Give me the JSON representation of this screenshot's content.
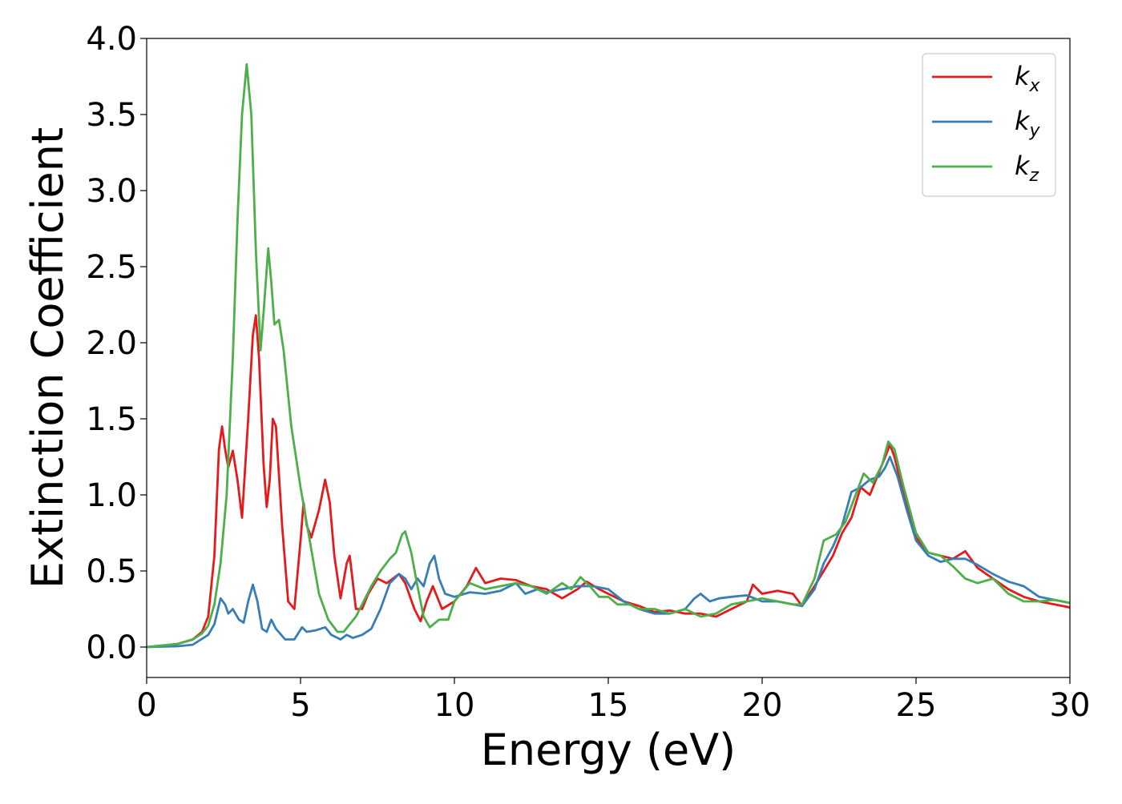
{
  "chart_data": {
    "type": "line",
    "xlabel": "Energy (eV)",
    "ylabel": "Extinction Coefficient",
    "xlim": [
      0,
      30
    ],
    "ylim": [
      -0.2,
      4.0
    ],
    "xticks": [
      0,
      5,
      10,
      15,
      20,
      25,
      30
    ],
    "xtick_labels": [
      "0",
      "5",
      "10",
      "15",
      "20",
      "25",
      "30"
    ],
    "yticks": [
      0.0,
      0.5,
      1.0,
      1.5,
      2.0,
      2.5,
      3.0,
      3.5,
      4.0
    ],
    "ytick_labels": [
      "0.0",
      "0.5",
      "1.0",
      "1.5",
      "2.0",
      "2.5",
      "3.0",
      "3.5",
      "4.0"
    ],
    "grid": false,
    "legend_position": "top-right",
    "series": [
      {
        "name": "k",
        "subscript": "x",
        "color": "#e41a1c",
        "points": [
          [
            0,
            0
          ],
          [
            1,
            0.02
          ],
          [
            1.5,
            0.05
          ],
          [
            1.8,
            0.1
          ],
          [
            2.0,
            0.2
          ],
          [
            2.2,
            0.6
          ],
          [
            2.35,
            1.3
          ],
          [
            2.45,
            1.45
          ],
          [
            2.55,
            1.3
          ],
          [
            2.65,
            1.18
          ],
          [
            2.8,
            1.29
          ],
          [
            2.95,
            1.1
          ],
          [
            3.1,
            0.85
          ],
          [
            3.3,
            1.5
          ],
          [
            3.45,
            2.05
          ],
          [
            3.55,
            2.18
          ],
          [
            3.65,
            1.9
          ],
          [
            3.8,
            1.2
          ],
          [
            3.9,
            0.92
          ],
          [
            4.0,
            1.1
          ],
          [
            4.1,
            1.5
          ],
          [
            4.2,
            1.45
          ],
          [
            4.4,
            0.8
          ],
          [
            4.6,
            0.3
          ],
          [
            4.8,
            0.25
          ],
          [
            5.0,
            0.7
          ],
          [
            5.1,
            0.95
          ],
          [
            5.2,
            0.8
          ],
          [
            5.35,
            0.72
          ],
          [
            5.6,
            0.9
          ],
          [
            5.8,
            1.1
          ],
          [
            5.95,
            0.95
          ],
          [
            6.1,
            0.6
          ],
          [
            6.3,
            0.32
          ],
          [
            6.5,
            0.55
          ],
          [
            6.6,
            0.6
          ],
          [
            6.8,
            0.25
          ],
          [
            7.0,
            0.25
          ],
          [
            7.2,
            0.35
          ],
          [
            7.5,
            0.45
          ],
          [
            7.8,
            0.42
          ],
          [
            8.2,
            0.48
          ],
          [
            8.4,
            0.42
          ],
          [
            8.7,
            0.25
          ],
          [
            8.9,
            0.17
          ],
          [
            9.1,
            0.3
          ],
          [
            9.3,
            0.4
          ],
          [
            9.6,
            0.25
          ],
          [
            10.0,
            0.3
          ],
          [
            10.4,
            0.4
          ],
          [
            10.7,
            0.52
          ],
          [
            11.0,
            0.42
          ],
          [
            11.5,
            0.45
          ],
          [
            12.0,
            0.44
          ],
          [
            12.5,
            0.4
          ],
          [
            13.0,
            0.38
          ],
          [
            13.5,
            0.32
          ],
          [
            14.0,
            0.38
          ],
          [
            14.3,
            0.43
          ],
          [
            14.7,
            0.38
          ],
          [
            15.0,
            0.35
          ],
          [
            15.5,
            0.3
          ],
          [
            16.0,
            0.27
          ],
          [
            16.5,
            0.23
          ],
          [
            17.0,
            0.24
          ],
          [
            17.5,
            0.22
          ],
          [
            18.0,
            0.22
          ],
          [
            18.5,
            0.2
          ],
          [
            19.0,
            0.25
          ],
          [
            19.5,
            0.3
          ],
          [
            19.7,
            0.41
          ],
          [
            20.0,
            0.35
          ],
          [
            20.5,
            0.37
          ],
          [
            21.0,
            0.35
          ],
          [
            21.3,
            0.27
          ],
          [
            21.7,
            0.4
          ],
          [
            22.0,
            0.5
          ],
          [
            22.3,
            0.6
          ],
          [
            22.6,
            0.75
          ],
          [
            22.9,
            0.85
          ],
          [
            23.2,
            1.05
          ],
          [
            23.5,
            1.0
          ],
          [
            23.8,
            1.15
          ],
          [
            24.0,
            1.25
          ],
          [
            24.15,
            1.33
          ],
          [
            24.3,
            1.25
          ],
          [
            24.6,
            1.0
          ],
          [
            25.0,
            0.72
          ],
          [
            25.4,
            0.62
          ],
          [
            25.8,
            0.6
          ],
          [
            26.2,
            0.58
          ],
          [
            26.6,
            0.63
          ],
          [
            27.0,
            0.52
          ],
          [
            27.5,
            0.45
          ],
          [
            28.0,
            0.38
          ],
          [
            28.5,
            0.33
          ],
          [
            29.0,
            0.3
          ],
          [
            29.5,
            0.28
          ],
          [
            30.0,
            0.26
          ]
        ]
      },
      {
        "name": "k",
        "subscript": "y",
        "color": "#377eb8",
        "points": [
          [
            0,
            0
          ],
          [
            1,
            0.005
          ],
          [
            1.5,
            0.015
          ],
          [
            2.0,
            0.08
          ],
          [
            2.2,
            0.15
          ],
          [
            2.4,
            0.32
          ],
          [
            2.55,
            0.28
          ],
          [
            2.65,
            0.22
          ],
          [
            2.8,
            0.25
          ],
          [
            3.0,
            0.18
          ],
          [
            3.15,
            0.16
          ],
          [
            3.3,
            0.3
          ],
          [
            3.45,
            0.41
          ],
          [
            3.6,
            0.3
          ],
          [
            3.75,
            0.12
          ],
          [
            3.9,
            0.1
          ],
          [
            4.05,
            0.18
          ],
          [
            4.2,
            0.12
          ],
          [
            4.5,
            0.05
          ],
          [
            4.8,
            0.05
          ],
          [
            5.05,
            0.13
          ],
          [
            5.2,
            0.1
          ],
          [
            5.5,
            0.11
          ],
          [
            5.8,
            0.13
          ],
          [
            6.0,
            0.08
          ],
          [
            6.3,
            0.05
          ],
          [
            6.5,
            0.08
          ],
          [
            6.7,
            0.06
          ],
          [
            7.0,
            0.08
          ],
          [
            7.3,
            0.12
          ],
          [
            7.6,
            0.25
          ],
          [
            7.9,
            0.42
          ],
          [
            8.2,
            0.48
          ],
          [
            8.4,
            0.45
          ],
          [
            8.6,
            0.38
          ],
          [
            8.8,
            0.45
          ],
          [
            9.0,
            0.4
          ],
          [
            9.2,
            0.55
          ],
          [
            9.35,
            0.6
          ],
          [
            9.5,
            0.45
          ],
          [
            9.7,
            0.35
          ],
          [
            10.0,
            0.33
          ],
          [
            10.5,
            0.36
          ],
          [
            11.0,
            0.35
          ],
          [
            11.5,
            0.37
          ],
          [
            12.0,
            0.42
          ],
          [
            12.3,
            0.35
          ],
          [
            12.7,
            0.38
          ],
          [
            13.0,
            0.36
          ],
          [
            13.5,
            0.38
          ],
          [
            14.0,
            0.4
          ],
          [
            14.5,
            0.4
          ],
          [
            15.0,
            0.38
          ],
          [
            15.5,
            0.3
          ],
          [
            16.0,
            0.25
          ],
          [
            16.5,
            0.22
          ],
          [
            17.0,
            0.22
          ],
          [
            17.5,
            0.25
          ],
          [
            17.8,
            0.32
          ],
          [
            18.0,
            0.35
          ],
          [
            18.3,
            0.3
          ],
          [
            18.6,
            0.32
          ],
          [
            19.0,
            0.33
          ],
          [
            19.5,
            0.34
          ],
          [
            20.0,
            0.3
          ],
          [
            20.5,
            0.3
          ],
          [
            21.0,
            0.28
          ],
          [
            21.3,
            0.27
          ],
          [
            21.7,
            0.38
          ],
          [
            22.0,
            0.55
          ],
          [
            22.3,
            0.66
          ],
          [
            22.6,
            0.8
          ],
          [
            22.9,
            1.02
          ],
          [
            23.2,
            1.05
          ],
          [
            23.5,
            1.1
          ],
          [
            23.8,
            1.12
          ],
          [
            24.0,
            1.18
          ],
          [
            24.15,
            1.25
          ],
          [
            24.4,
            1.12
          ],
          [
            24.7,
            0.9
          ],
          [
            25.0,
            0.7
          ],
          [
            25.4,
            0.6
          ],
          [
            25.8,
            0.56
          ],
          [
            26.2,
            0.58
          ],
          [
            26.6,
            0.58
          ],
          [
            27.0,
            0.54
          ],
          [
            27.5,
            0.48
          ],
          [
            28.0,
            0.43
          ],
          [
            28.5,
            0.4
          ],
          [
            29.0,
            0.33
          ],
          [
            29.5,
            0.31
          ],
          [
            30.0,
            0.29
          ]
        ]
      },
      {
        "name": "k",
        "subscript": "z",
        "color": "#4daf4a",
        "points": [
          [
            0,
            0
          ],
          [
            1,
            0.02
          ],
          [
            1.5,
            0.05
          ],
          [
            1.8,
            0.09
          ],
          [
            2.0,
            0.14
          ],
          [
            2.2,
            0.28
          ],
          [
            2.4,
            0.55
          ],
          [
            2.6,
            1.0
          ],
          [
            2.8,
            1.9
          ],
          [
            2.95,
            2.8
          ],
          [
            3.1,
            3.5
          ],
          [
            3.25,
            3.83
          ],
          [
            3.4,
            3.5
          ],
          [
            3.55,
            2.6
          ],
          [
            3.7,
            1.95
          ],
          [
            3.8,
            2.2
          ],
          [
            3.95,
            2.62
          ],
          [
            4.05,
            2.4
          ],
          [
            4.15,
            2.12
          ],
          [
            4.3,
            2.15
          ],
          [
            4.45,
            1.95
          ],
          [
            4.7,
            1.45
          ],
          [
            5.0,
            1.05
          ],
          [
            5.3,
            0.7
          ],
          [
            5.6,
            0.35
          ],
          [
            5.9,
            0.18
          ],
          [
            6.2,
            0.1
          ],
          [
            6.4,
            0.1
          ],
          [
            6.6,
            0.15
          ],
          [
            6.8,
            0.2
          ],
          [
            7.0,
            0.28
          ],
          [
            7.3,
            0.4
          ],
          [
            7.6,
            0.5
          ],
          [
            7.9,
            0.58
          ],
          [
            8.1,
            0.62
          ],
          [
            8.3,
            0.74
          ],
          [
            8.4,
            0.76
          ],
          [
            8.6,
            0.62
          ],
          [
            8.8,
            0.4
          ],
          [
            9.0,
            0.2
          ],
          [
            9.2,
            0.13
          ],
          [
            9.5,
            0.18
          ],
          [
            9.8,
            0.18
          ],
          [
            10.0,
            0.3
          ],
          [
            10.5,
            0.42
          ],
          [
            11.0,
            0.38
          ],
          [
            11.5,
            0.4
          ],
          [
            12.0,
            0.42
          ],
          [
            12.5,
            0.4
          ],
          [
            13.0,
            0.35
          ],
          [
            13.5,
            0.42
          ],
          [
            13.8,
            0.38
          ],
          [
            14.1,
            0.46
          ],
          [
            14.4,
            0.4
          ],
          [
            14.7,
            0.33
          ],
          [
            15.0,
            0.33
          ],
          [
            15.3,
            0.28
          ],
          [
            15.7,
            0.28
          ],
          [
            16.0,
            0.25
          ],
          [
            16.5,
            0.25
          ],
          [
            17.0,
            0.22
          ],
          [
            17.5,
            0.25
          ],
          [
            18.0,
            0.2
          ],
          [
            18.5,
            0.22
          ],
          [
            19.0,
            0.28
          ],
          [
            19.5,
            0.3
          ],
          [
            20.0,
            0.32
          ],
          [
            20.5,
            0.3
          ],
          [
            21.0,
            0.28
          ],
          [
            21.3,
            0.28
          ],
          [
            21.7,
            0.45
          ],
          [
            22.0,
            0.7
          ],
          [
            22.4,
            0.74
          ],
          [
            22.7,
            0.82
          ],
          [
            23.0,
            0.98
          ],
          [
            23.3,
            1.14
          ],
          [
            23.6,
            1.08
          ],
          [
            23.9,
            1.2
          ],
          [
            24.1,
            1.35
          ],
          [
            24.3,
            1.3
          ],
          [
            24.6,
            1.05
          ],
          [
            25.0,
            0.75
          ],
          [
            25.4,
            0.62
          ],
          [
            25.8,
            0.6
          ],
          [
            26.2,
            0.53
          ],
          [
            26.6,
            0.45
          ],
          [
            27.0,
            0.42
          ],
          [
            27.5,
            0.45
          ],
          [
            28.0,
            0.35
          ],
          [
            28.5,
            0.3
          ],
          [
            29.0,
            0.3
          ],
          [
            29.5,
            0.31
          ],
          [
            30.0,
            0.29
          ]
        ]
      }
    ]
  }
}
